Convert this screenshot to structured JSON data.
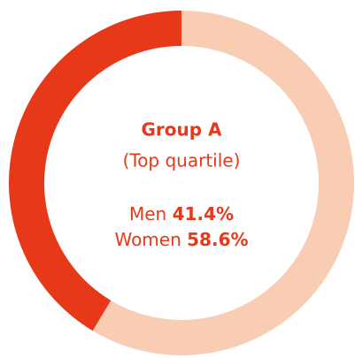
{
  "chart_data": {
    "type": "donut",
    "title": "Group A",
    "subtitle": "(Top quartile)",
    "categories": [
      "Men",
      "Women"
    ],
    "values": [
      41.4,
      58.6
    ],
    "value_labels": [
      "41.4%",
      "58.6%"
    ],
    "colors": [
      "#e8381a",
      "#f9ccb4"
    ]
  }
}
